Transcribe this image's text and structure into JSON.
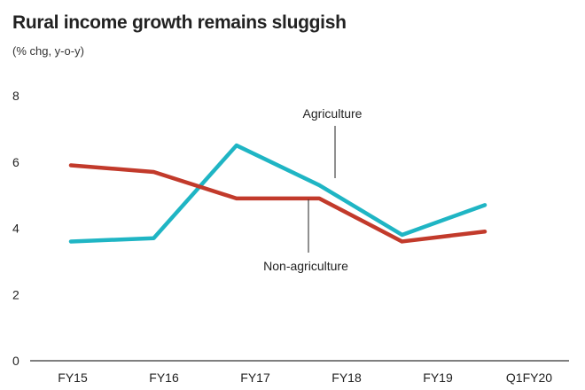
{
  "chart_data": {
    "type": "line",
    "title": "Rural income growth remains sluggish",
    "subtitle": "(% chg, y-o-y)",
    "categories": [
      "FY15",
      "FY16",
      "FY17",
      "FY18",
      "FY19",
      "Q1FY20"
    ],
    "yticks": [
      "0",
      "2",
      "4",
      "6",
      "8"
    ],
    "ylim": [
      0,
      8
    ],
    "grid": false,
    "legend": "inline annotations",
    "series": [
      {
        "name": "Agriculture",
        "color": "#1fb5c4",
        "values": [
          3.6,
          3.7,
          6.5,
          5.3,
          3.8,
          4.7
        ]
      },
      {
        "name": "Non-agriculture",
        "color": "#c23a2b",
        "values": [
          5.9,
          5.7,
          4.9,
          4.9,
          3.6,
          3.9
        ]
      }
    ]
  }
}
